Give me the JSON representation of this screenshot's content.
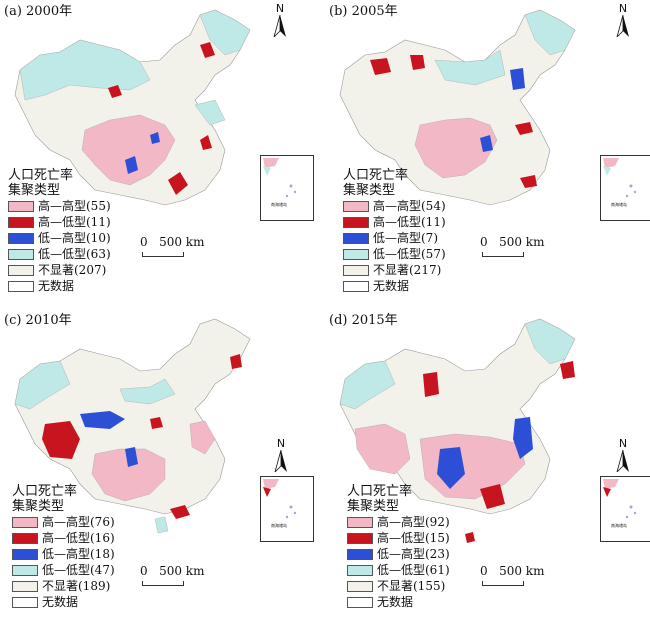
{
  "colors": {
    "high_high": "#f2b8c6",
    "high_low": "#c8141e",
    "low_high": "#2c4fd6",
    "low_low": "#bfe9e6",
    "not_significant": "#f2f1ea",
    "no_data": "#ffffff"
  },
  "north_letter": "N",
  "scale_text": "0   500 km",
  "legend_title_1": "人口死亡率",
  "legend_title_2": "集聚类型",
  "inset_label": "南海诸岛",
  "panels": [
    {
      "title": "(a) 2000年",
      "legend": [
        "高—高型(55)",
        "高—低型(11)",
        "低—高型(10)",
        "低—低型(63)",
        "不显著(207)",
        "无数据"
      ]
    },
    {
      "title": "(b) 2005年",
      "legend": [
        "高—高型(54)",
        "高—低型(11)",
        "低—高型(7)",
        "低—低型(57)",
        "不显著(217)",
        "无数据"
      ]
    },
    {
      "title": "(c) 2010年",
      "legend": [
        "高—高型(76)",
        "高—低型(16)",
        "低—高型(18)",
        "低—低型(47)",
        "不显著(189)",
        "无数据"
      ]
    },
    {
      "title": "(d) 2015年",
      "legend": [
        "高—高型(92)",
        "高—低型(15)",
        "低—高型(23)",
        "低—低型(61)",
        "不显著(155)",
        "无数据"
      ]
    }
  ]
}
